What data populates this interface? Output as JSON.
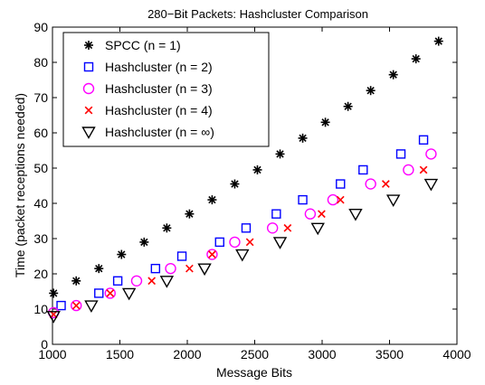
{
  "chart_data": {
    "type": "scatter",
    "title": "280−Bit Packets: Hashcluster Comparison",
    "xlabel": "Message Bits",
    "ylabel": "Time (packet receptions needed)",
    "xlim": [
      1000,
      4000
    ],
    "ylim": [
      0,
      90
    ],
    "xticks": [
      1000,
      1500,
      2000,
      2500,
      3000,
      3500,
      4000
    ],
    "yticks": [
      0,
      10,
      20,
      30,
      40,
      50,
      60,
      70,
      80,
      90
    ],
    "grid": false,
    "legend_position": "top-left",
    "series": [
      {
        "name": "SPCC (n = 1)",
        "marker": "asterisk",
        "color": "#000000",
        "x": [
          1008,
          1176,
          1344,
          1512,
          1680,
          1848,
          2016,
          2184,
          2352,
          2520,
          2688,
          2856,
          3024,
          3192,
          3360,
          3528,
          3696,
          3864
        ],
        "y": [
          14.5,
          18,
          21.5,
          25.5,
          29,
          33,
          37,
          41,
          45.5,
          49.5,
          54,
          58.5,
          63,
          67.5,
          72,
          76.5,
          81,
          86
        ]
      },
      {
        "name": "Hashcluster (n = 2)",
        "marker": "square",
        "color": "#0000ff",
        "x": [
          1064,
          1344,
          1484,
          1764,
          1960,
          2240,
          2436,
          2660,
          2856,
          3136,
          3304,
          3584,
          3752
        ],
        "y": [
          11,
          14.5,
          18,
          21.5,
          25,
          29,
          33,
          37,
          41,
          45.5,
          49.5,
          54,
          58
        ]
      },
      {
        "name": "Hashcluster (n = 3)",
        "marker": "circle",
        "color": "#ff00ff",
        "x": [
          1008,
          1176,
          1428,
          1624,
          1876,
          2184,
          2352,
          2632,
          2912,
          3080,
          3360,
          3640,
          3808
        ],
        "y": [
          9,
          11,
          14.5,
          18,
          21.5,
          25.5,
          29,
          33,
          37,
          41,
          45.5,
          49.5,
          54
        ]
      },
      {
        "name": "Hashcluster (n = 4)",
        "marker": "x",
        "color": "#ff0000",
        "x": [
          1008,
          1176,
          1428,
          1736,
          2016,
          2184,
          2464,
          2744,
          2996,
          3136,
          3472,
          3752
        ],
        "y": [
          8.5,
          11,
          14.5,
          18,
          21.5,
          25.5,
          29,
          33,
          37,
          41,
          45.5,
          49.5
        ]
      },
      {
        "name": "Hashcluster (n = ∞)",
        "marker": "triangle-down",
        "color": "#000000",
        "x": [
          1008,
          1288,
          1568,
          1848,
          2128,
          2408,
          2688,
          2968,
          3248,
          3528,
          3808
        ],
        "y": [
          8,
          11,
          14.5,
          18,
          21.5,
          25.5,
          29,
          33,
          37,
          41,
          45.5
        ]
      }
    ]
  }
}
